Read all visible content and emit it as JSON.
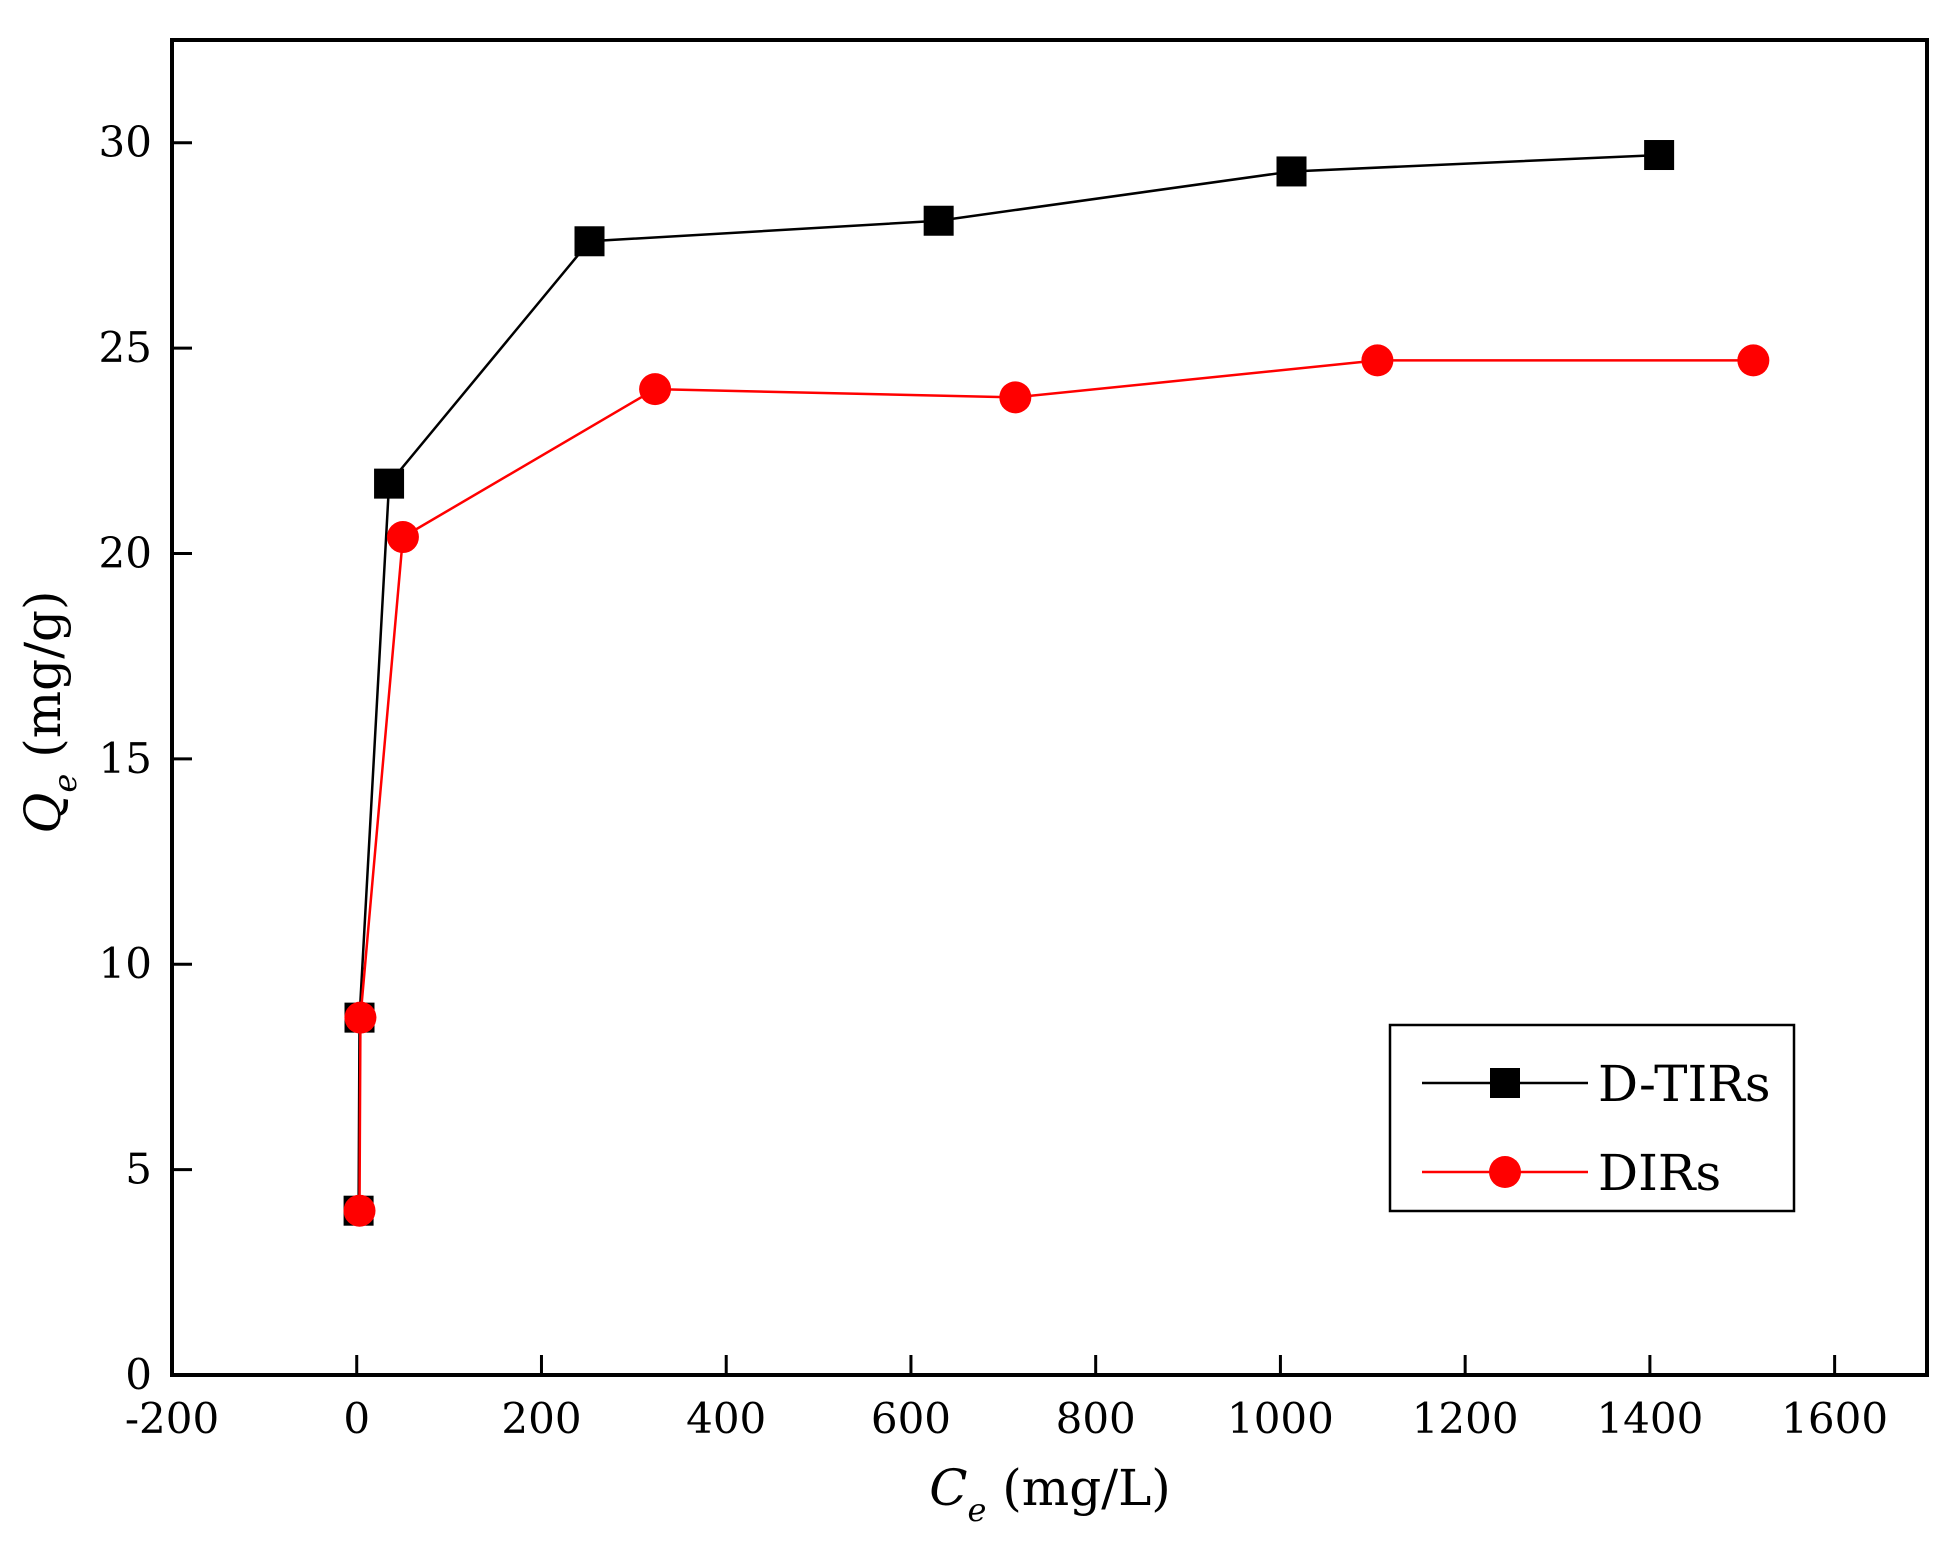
{
  "chart_data": {
    "type": "line",
    "title": "",
    "xlabel": {
      "main": "C",
      "sub": "e",
      "unit": " (mg/L)"
    },
    "ylabel": {
      "main": "Q",
      "sub": "e",
      "unit": " (mg/g)"
    },
    "xlim": [
      -200,
      1700
    ],
    "ylim": [
      0,
      32.5
    ],
    "xticks": [
      -200,
      0,
      200,
      400,
      600,
      800,
      1000,
      1200,
      1400,
      1600
    ],
    "xtick_labels": [
      "-200",
      "0",
      "200",
      "400",
      "600",
      "800",
      "1000",
      "1200",
      "1400",
      "1600"
    ],
    "yticks": [
      0,
      5,
      10,
      15,
      20,
      25,
      30
    ],
    "ytick_labels": [
      "0",
      "5",
      "10",
      "15",
      "20",
      "25",
      "30"
    ],
    "grid": false,
    "legend_position": "bottom-right",
    "series": [
      {
        "name": "D-TIRs",
        "color": "#000000",
        "marker": "square",
        "x": [
          2,
          3,
          35,
          252,
          630,
          1012,
          1410
        ],
        "y": [
          4.0,
          8.7,
          21.7,
          27.6,
          28.1,
          29.3,
          29.7
        ]
      },
      {
        "name": "DIRs",
        "color": "#ff0000",
        "marker": "circle",
        "x": [
          3,
          4,
          50,
          323,
          713,
          1105,
          1512
        ],
        "y": [
          4.0,
          8.7,
          20.4,
          24.0,
          23.8,
          24.7,
          24.7
        ]
      }
    ]
  }
}
